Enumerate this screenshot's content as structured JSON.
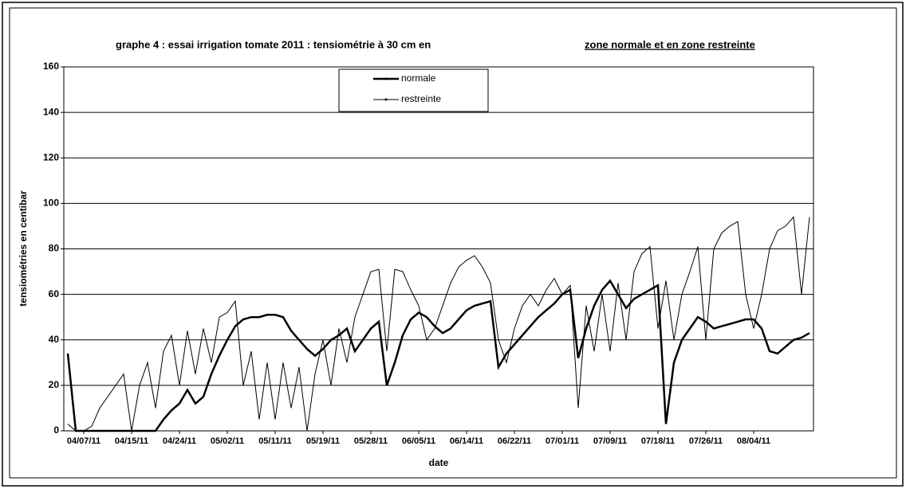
{
  "chart_data": {
    "type": "line",
    "title": [
      "graphe 4 : essai irrigation tomate 2011 : tensiométrie à 30 cm en",
      "zone normale et en zone restreinte"
    ],
    "xlabel": "date",
    "ylabel": "tensiométries en centibar",
    "categories": [
      null,
      null,
      "04/07/11",
      null,
      null,
      null,
      null,
      null,
      "04/15/11",
      null,
      null,
      null,
      null,
      null,
      "04/24/11",
      null,
      null,
      null,
      null,
      null,
      "05/02/11",
      null,
      null,
      null,
      null,
      null,
      "05/11/11",
      null,
      null,
      null,
      null,
      null,
      "05/19/11",
      null,
      null,
      null,
      null,
      null,
      "05/28/11",
      null,
      null,
      null,
      null,
      null,
      "06/05/11",
      null,
      null,
      null,
      null,
      null,
      "06/14/11",
      null,
      null,
      null,
      null,
      null,
      "06/22/11",
      null,
      null,
      null,
      null,
      null,
      "07/01/11",
      null,
      null,
      null,
      null,
      null,
      "07/09/11",
      null,
      null,
      null,
      null,
      null,
      "07/18/11",
      null,
      null,
      null,
      null,
      null,
      "07/26/11",
      null,
      null,
      null,
      null,
      null,
      "08/04/11",
      null,
      null,
      null,
      null,
      null,
      null,
      null
    ],
    "series": [
      {
        "name": "normale",
        "color": "#000000",
        "values": [
          34,
          0,
          0,
          0,
          0,
          0,
          0,
          0,
          0,
          0,
          0,
          0,
          5,
          9,
          12,
          18,
          12,
          15,
          25,
          33,
          40,
          46,
          49,
          50,
          50,
          51,
          51,
          50,
          44,
          40,
          36,
          33,
          36,
          40,
          42,
          45,
          35,
          40,
          45,
          48,
          20,
          30,
          42,
          49,
          52,
          50,
          46,
          43,
          45,
          49,
          53,
          55,
          56,
          57,
          28,
          34,
          38,
          42,
          46,
          50,
          53,
          56,
          60,
          62,
          32,
          45,
          55,
          62,
          66,
          60,
          54,
          58,
          60,
          62,
          64,
          3,
          30,
          40,
          45,
          50,
          48,
          45,
          46,
          47,
          48,
          49,
          49,
          45,
          35,
          34,
          37,
          40,
          41,
          43
        ]
      },
      {
        "name": "restreinte",
        "color": "#000000",
        "values": [
          3,
          0,
          0,
          2,
          10,
          15,
          20,
          25,
          0,
          20,
          30,
          10,
          35,
          42,
          20,
          44,
          25,
          45,
          30,
          50,
          52,
          57,
          20,
          35,
          5,
          30,
          5,
          30,
          10,
          28,
          0,
          25,
          40,
          20,
          45,
          30,
          50,
          60,
          70,
          71,
          35,
          71,
          70,
          62,
          55,
          40,
          45,
          55,
          65,
          72,
          75,
          77,
          72,
          65,
          40,
          30,
          45,
          55,
          60,
          55,
          62,
          67,
          60,
          64,
          10,
          55,
          35,
          60,
          35,
          65,
          40,
          70,
          78,
          81,
          45,
          66,
          40,
          60,
          70,
          81,
          40,
          80,
          87,
          90,
          92,
          60,
          45,
          60,
          80,
          88,
          90,
          94,
          60,
          94
        ]
      }
    ],
    "ylim": [
      0,
      160
    ],
    "yticks": [
      0,
      20,
      40,
      60,
      80,
      100,
      120,
      140,
      160
    ],
    "grid": true
  }
}
